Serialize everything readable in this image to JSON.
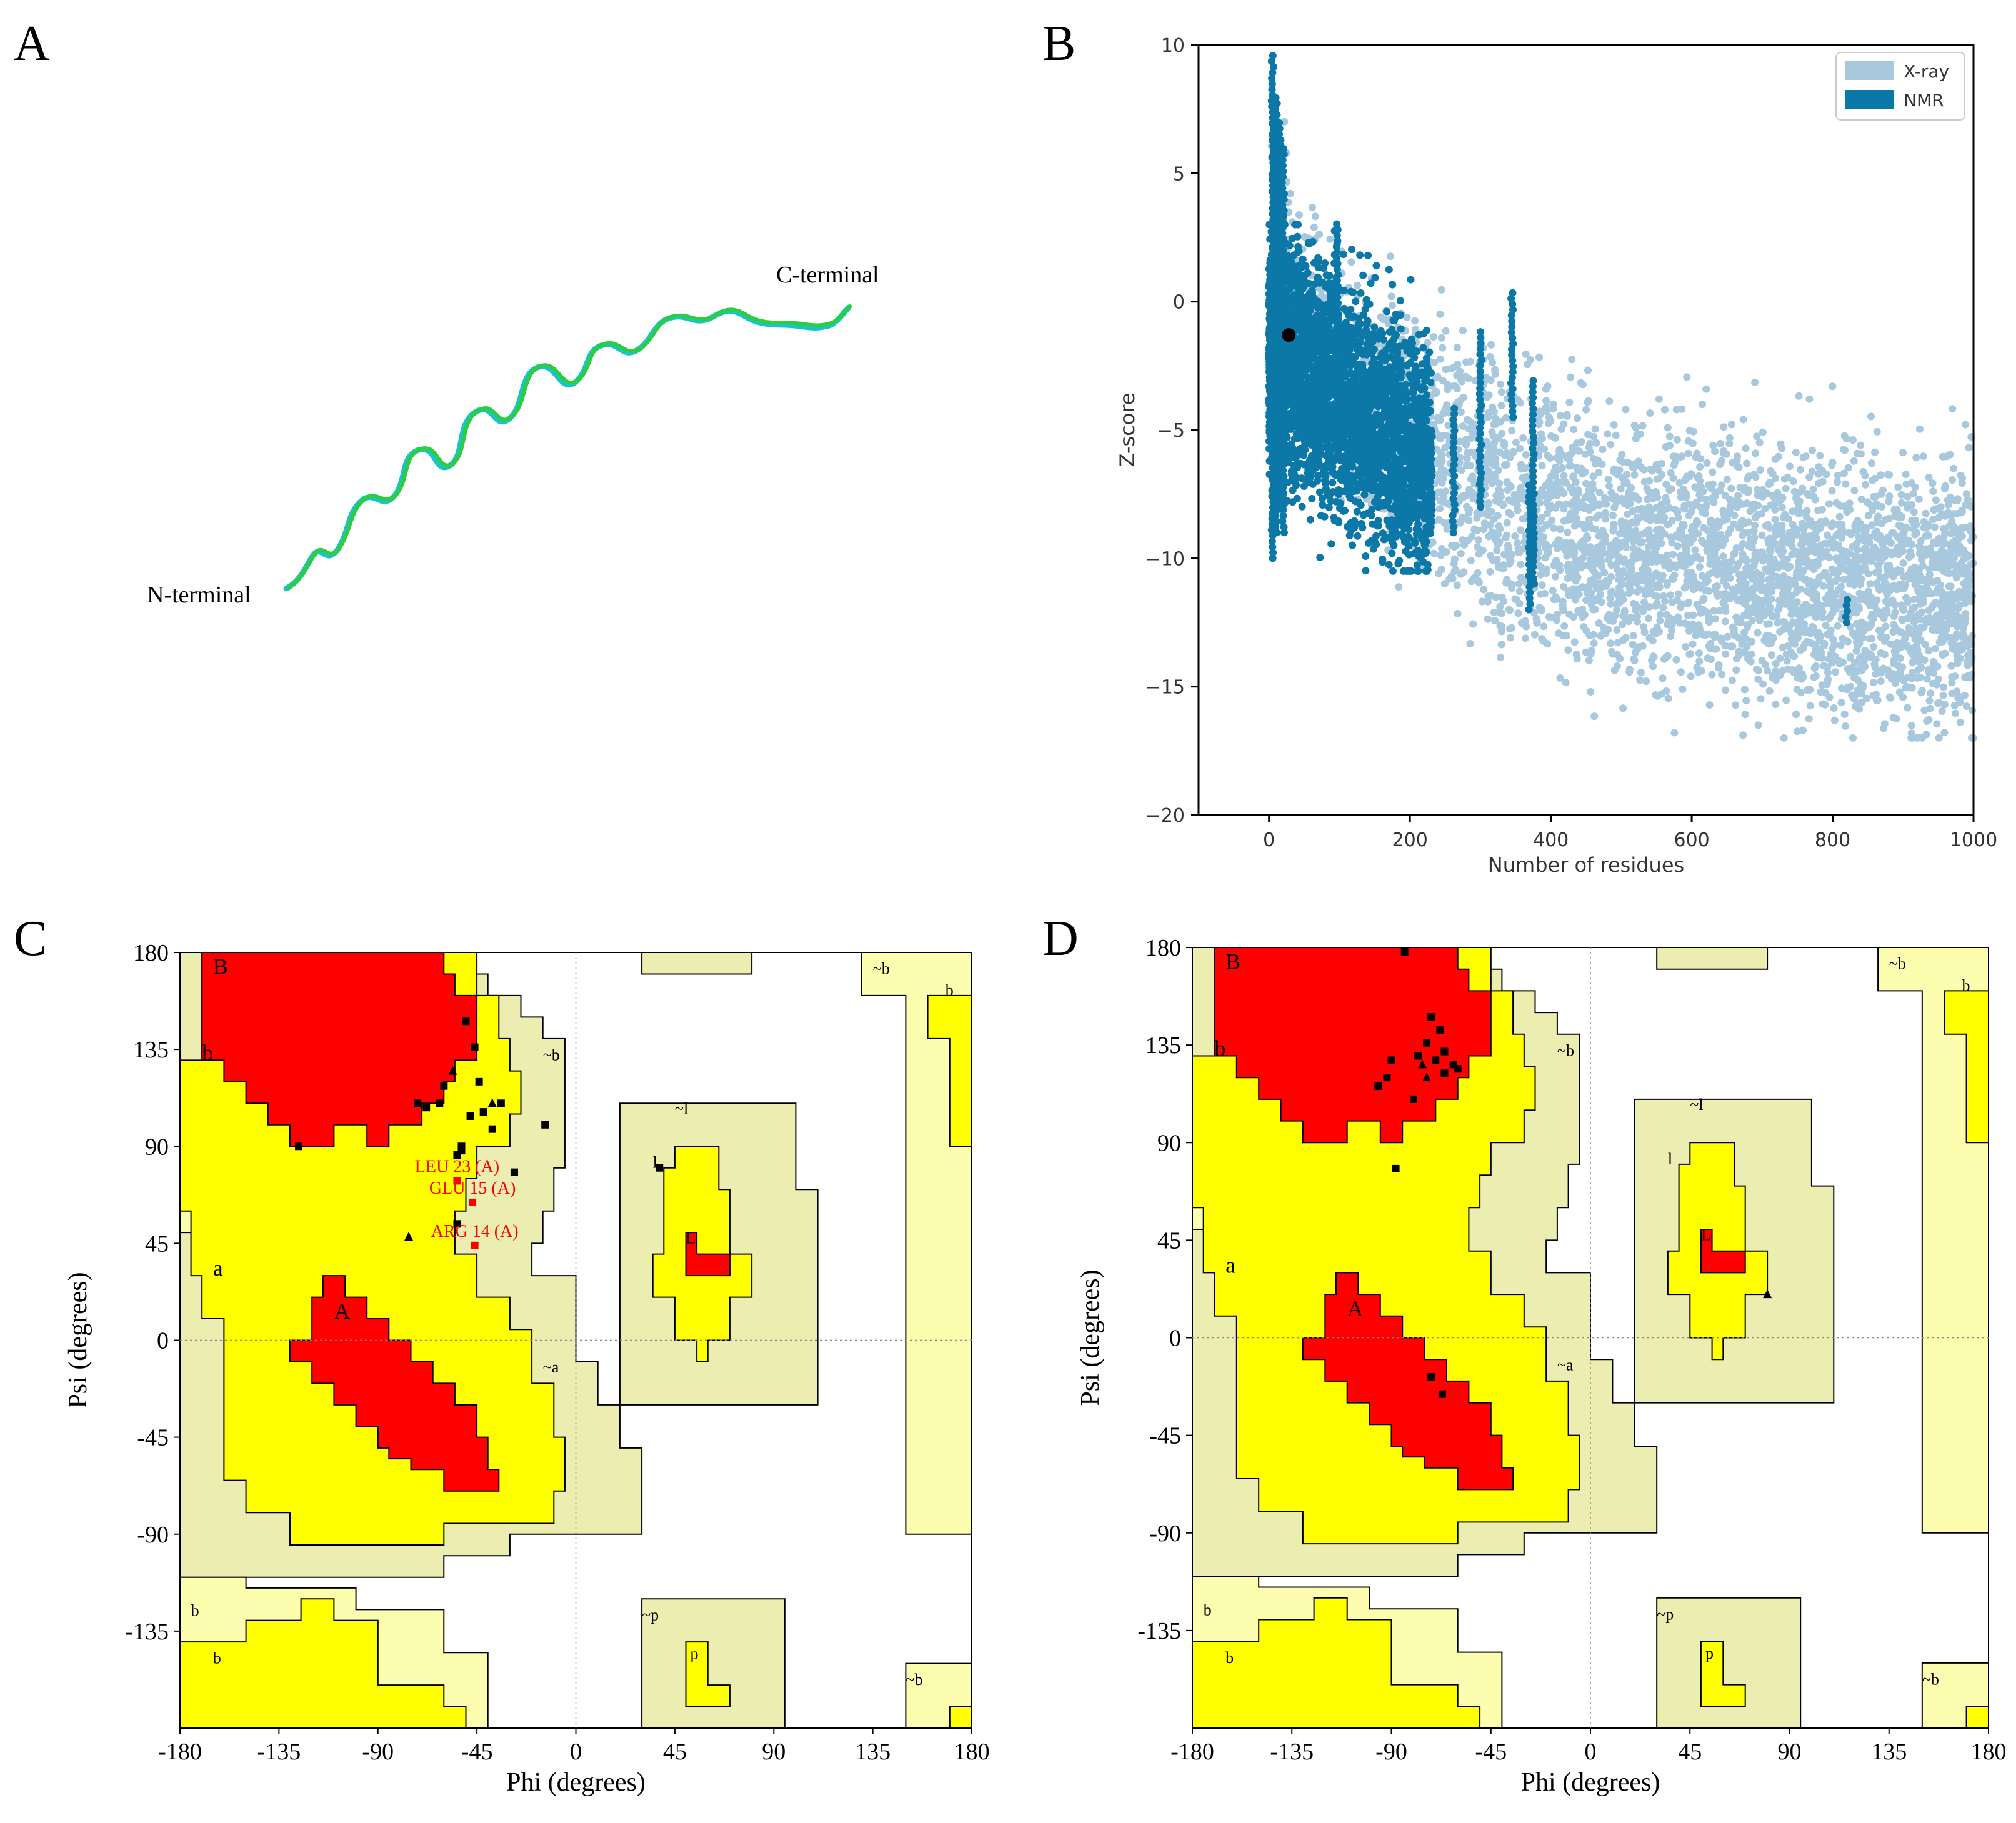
{
  "panels": {
    "A": {
      "letter": "A",
      "n_terminal_label": "N-terminal",
      "c_terminal_label": "C-terminal",
      "colors": {
        "ribbon_green": "#2ecc40",
        "ribbon_cyan": "#19c4c8"
      }
    },
    "B": {
      "letter": "B",
      "colors": {
        "xray": "#a8c8de",
        "nmr": "#0c78a8",
        "point": "#000000"
      },
      "chart_data": {
        "type": "scatter",
        "title": "",
        "xlabel": "Number of residues",
        "ylabel": "Z-score",
        "xlim": [
          -100,
          1000
        ],
        "ylim": [
          -20,
          10
        ],
        "x_ticks": [
          "0",
          "200",
          "400",
          "600",
          "800",
          "1000"
        ],
        "y_ticks": [
          "10",
          "5",
          "0",
          "−5",
          "−10",
          "−15",
          "−20"
        ],
        "legend": {
          "placement": "top-right",
          "entries": [
            "X-ray",
            "NMR"
          ]
        },
        "series": [
          {
            "name": "X-ray",
            "description_points": "dense cloud, residues 0-1000, z-score trend from about 0 at 0 residues down to about -12 at 1000 residues"
          },
          {
            "name": "NMR",
            "description_points": "dense cloud, residues 0-200, z-score about -2 to -8"
          }
        ],
        "highlight_point": {
          "x": 28,
          "y": -1.3
        }
      }
    },
    "C": {
      "letter": "C",
      "xlabel": "Phi (degrees)",
      "ylabel": "Psi (degrees)",
      "x_ticks": [
        "-180",
        "-135",
        "-90",
        "-45",
        "0",
        "45",
        "90",
        "135",
        "180"
      ],
      "y_ticks": [
        "180",
        "135",
        "90",
        "45",
        "0",
        "-45",
        "-90",
        "-135"
      ],
      "region_labels": [
        "B",
        "b",
        "a",
        "A",
        "~b",
        "~a",
        "~l",
        "l",
        "L",
        "~p",
        "p",
        "~b",
        "b",
        "~b",
        "b"
      ],
      "outlier_labels": [
        "LEU 23 (A)",
        "GLU 15 (A)",
        "ARG 14 (A)"
      ],
      "chart_data": {
        "type": "scatter",
        "xlim": [
          -180,
          180
        ],
        "ylim": [
          -180,
          180
        ],
        "points": [
          {
            "phi": -126,
            "psi": 90
          },
          {
            "phi": -72,
            "psi": 110
          },
          {
            "phi": -68,
            "psi": 108
          },
          {
            "phi": -62,
            "psi": 110
          },
          {
            "phi": -60,
            "psi": 118
          },
          {
            "phi": -56,
            "psi": 125
          },
          {
            "phi": -50,
            "psi": 148
          },
          {
            "phi": -46,
            "psi": 136
          },
          {
            "phi": -44,
            "psi": 120
          },
          {
            "phi": -48,
            "psi": 104
          },
          {
            "phi": -42,
            "psi": 106
          },
          {
            "phi": -38,
            "psi": 110
          },
          {
            "phi": -34,
            "psi": 110
          },
          {
            "phi": -38,
            "psi": 98
          },
          {
            "phi": -52,
            "psi": 90
          },
          {
            "phi": -54,
            "psi": 86
          },
          {
            "phi": -52,
            "psi": 88
          },
          {
            "phi": -76,
            "psi": 48
          },
          {
            "phi": -54,
            "psi": 54
          },
          {
            "phi": -28,
            "psi": 78
          },
          {
            "phi": -14,
            "psi": 100
          },
          {
            "phi": 38,
            "psi": 80
          }
        ],
        "outliers": [
          {
            "label": "LEU 23 (A)",
            "phi": -54,
            "psi": 74
          },
          {
            "label": "GLU 15 (A)",
            "phi": -47,
            "psi": 64
          },
          {
            "label": "ARG 14 (A)",
            "phi": -46,
            "psi": 44
          }
        ]
      }
    },
    "D": {
      "letter": "D",
      "xlabel": "Phi (degrees)",
      "ylabel": "Psi (degrees)",
      "x_ticks": [
        "-180",
        "-135",
        "-90",
        "-45",
        "0",
        "45",
        "90",
        "135",
        "180"
      ],
      "y_ticks": [
        "180",
        "135",
        "90",
        "45",
        "0",
        "-45",
        "-90",
        "-135"
      ],
      "region_labels": [
        "B",
        "b",
        "a",
        "A",
        "~b",
        "~a",
        "~l",
        "l",
        "L",
        "~p",
        "p",
        "~b",
        "b",
        "~b",
        "b"
      ],
      "chart_data": {
        "type": "scatter",
        "xlim": [
          -180,
          180
        ],
        "ylim": [
          -180,
          180
        ],
        "points": [
          {
            "phi": -84,
            "psi": 178
          },
          {
            "phi": -72,
            "psi": 148
          },
          {
            "phi": -68,
            "psi": 142
          },
          {
            "phi": -74,
            "psi": 136
          },
          {
            "phi": -78,
            "psi": 130
          },
          {
            "phi": -76,
            "psi": 126
          },
          {
            "phi": -70,
            "psi": 128
          },
          {
            "phi": -66,
            "psi": 132
          },
          {
            "phi": -62,
            "psi": 126
          },
          {
            "phi": -60,
            "psi": 124
          },
          {
            "phi": -66,
            "psi": 122
          },
          {
            "phi": -74,
            "psi": 120
          },
          {
            "phi": -90,
            "psi": 128
          },
          {
            "phi": -92,
            "psi": 120
          },
          {
            "phi": -96,
            "psi": 116
          },
          {
            "phi": -80,
            "psi": 110
          },
          {
            "phi": -88,
            "psi": 78
          },
          {
            "phi": 80,
            "psi": 20
          },
          {
            "phi": -72,
            "psi": -18
          },
          {
            "phi": -67,
            "psi": -26
          }
        ]
      }
    }
  }
}
